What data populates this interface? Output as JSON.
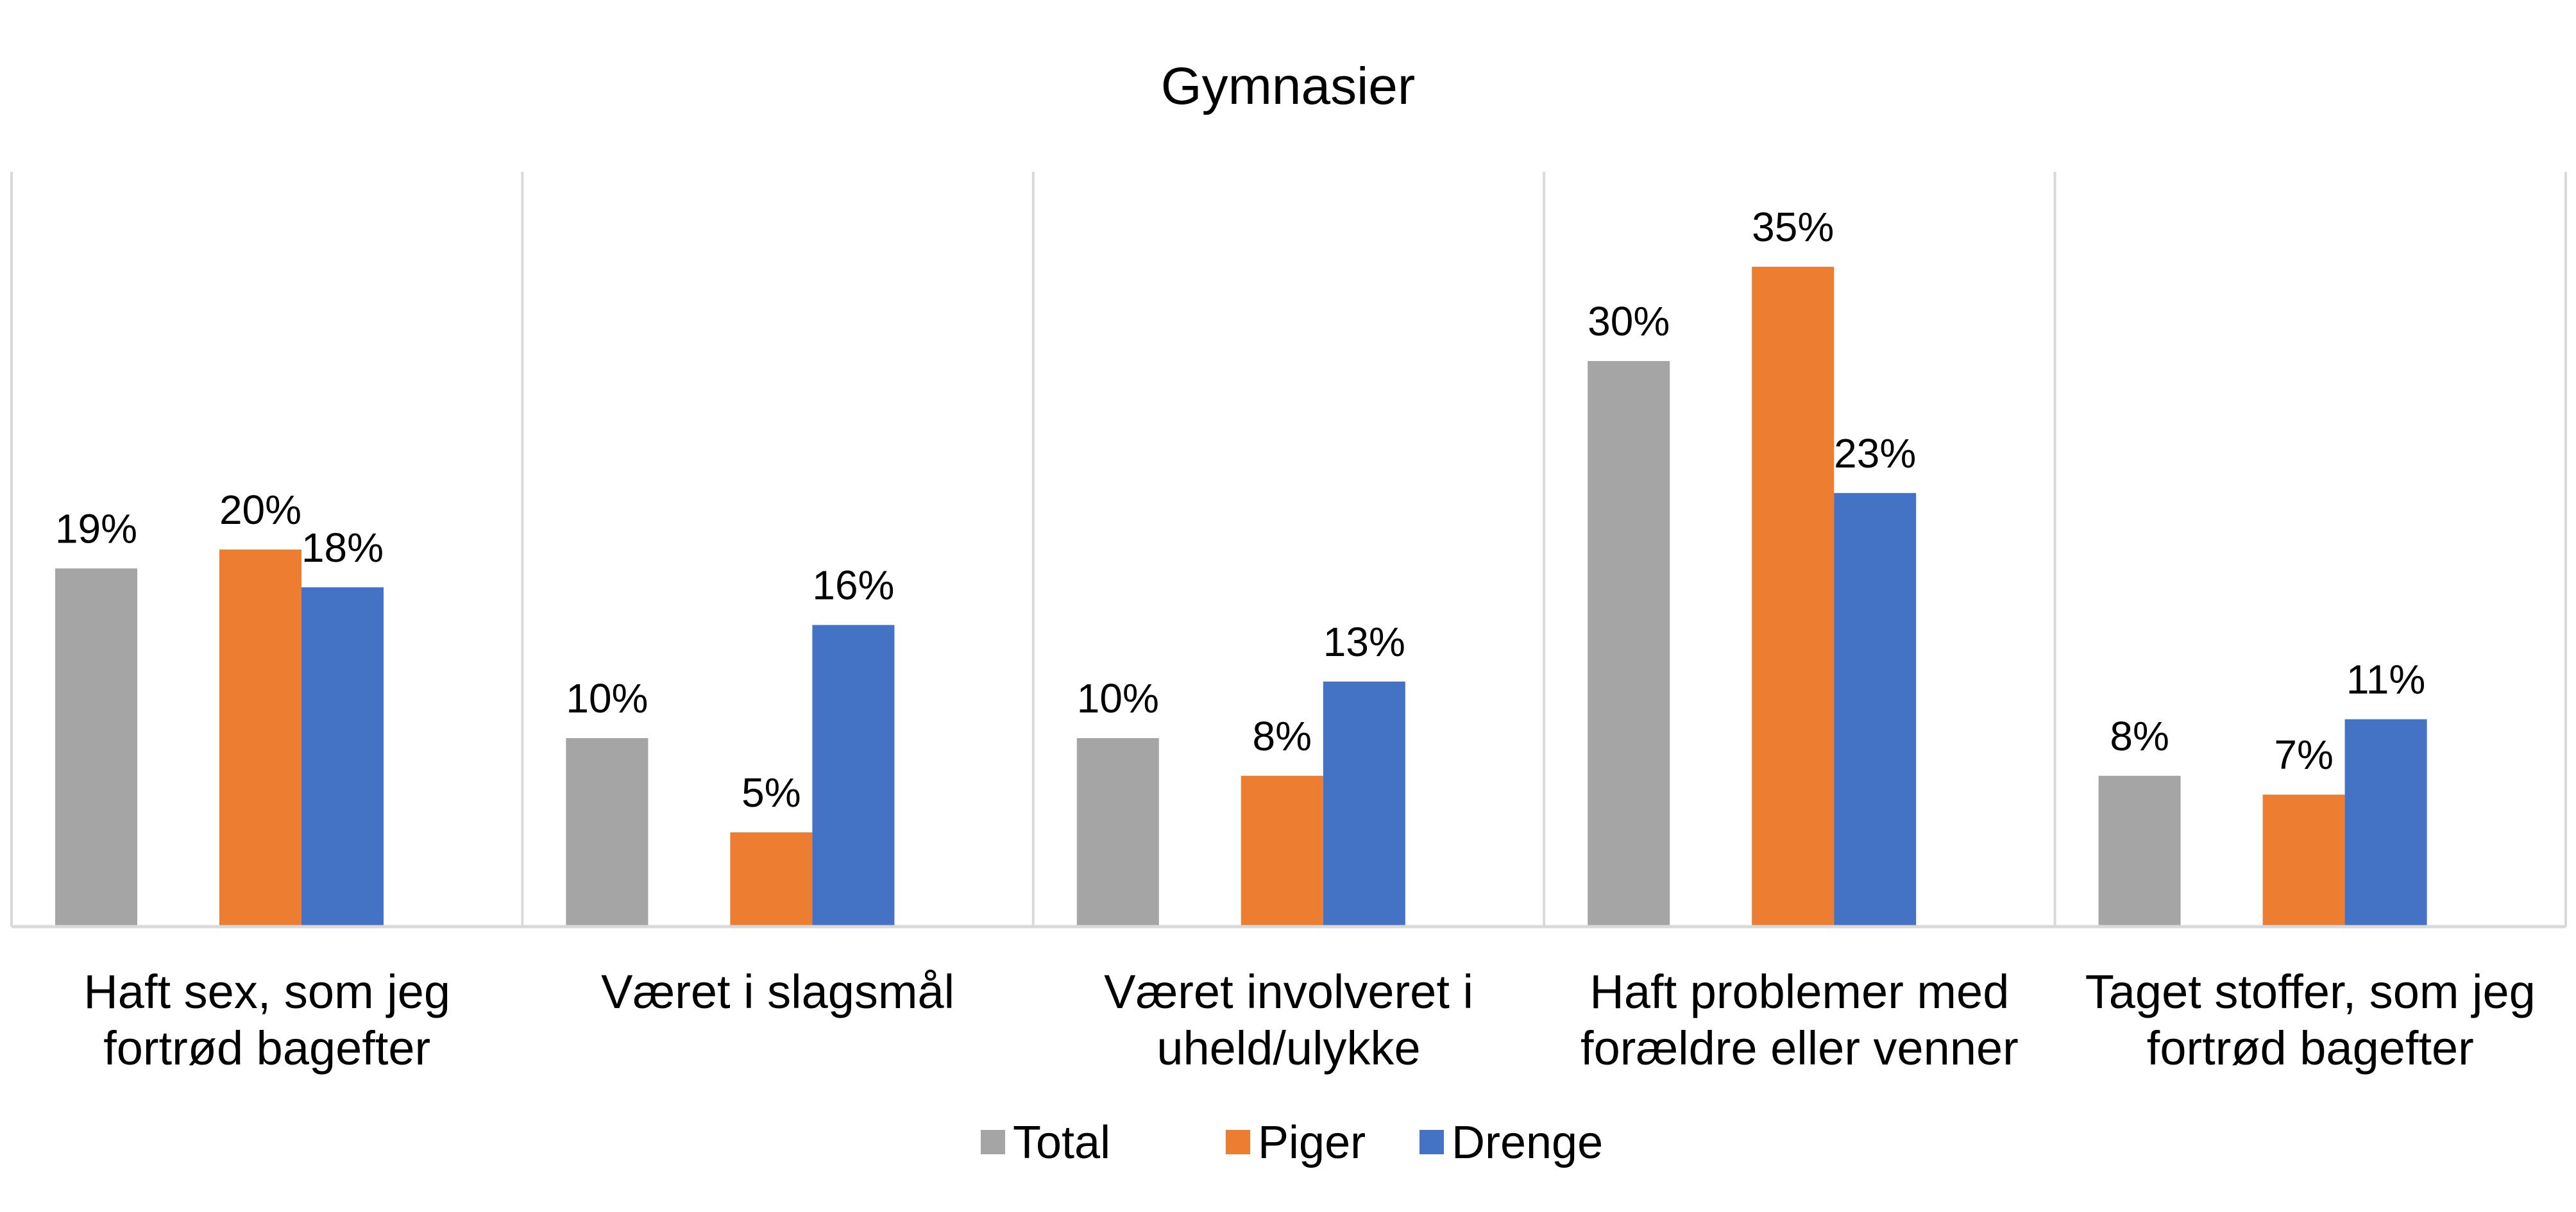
{
  "chart_data": {
    "type": "bar",
    "title": "Gymnasier",
    "categories": [
      [
        "Haft sex, som jeg",
        "fortrød bagefter"
      ],
      [
        "Været i slagsmål"
      ],
      [
        "Været involveret i",
        "uheld/ulykke"
      ],
      [
        "Haft problemer med",
        "forældre eller venner"
      ],
      [
        "Taget stoffer, som jeg",
        "fortrød bagefter"
      ]
    ],
    "series": [
      {
        "name": "Total",
        "color": "#A5A5A5",
        "values": [
          19,
          10,
          10,
          30,
          8
        ],
        "labels": [
          "19%",
          "10%",
          "10%",
          "30%",
          "8%"
        ]
      },
      {
        "name": "Piger",
        "color": "#ED7D31",
        "values": [
          20,
          5,
          8,
          35,
          7
        ],
        "labels": [
          "20%",
          "5%",
          "8%",
          "35%",
          "7%"
        ]
      },
      {
        "name": "Drenge",
        "color": "#4472C4",
        "values": [
          18,
          16,
          13,
          23,
          11
        ],
        "labels": [
          "18%",
          "16%",
          "13%",
          "23%",
          "11%"
        ]
      }
    ],
    "ylim": [
      0,
      40
    ],
    "grid": "vertical-separators",
    "legend_position": "bottom"
  }
}
